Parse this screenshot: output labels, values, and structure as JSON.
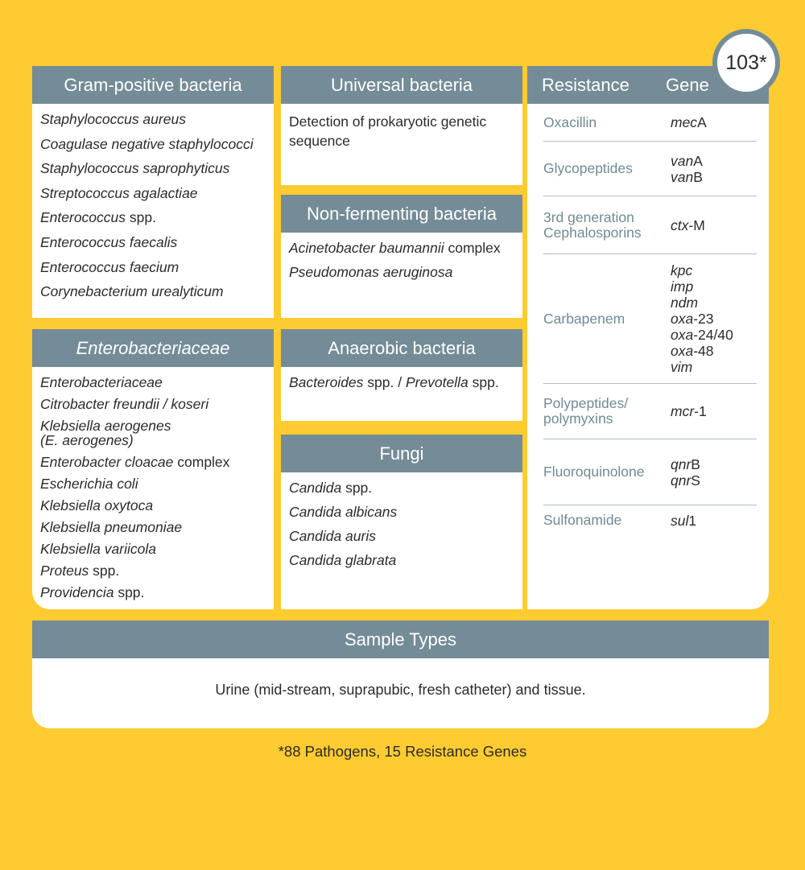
{
  "colors": {
    "background": "#FECB30",
    "header": "#748C97",
    "resistance_text": "#6F8A96"
  },
  "gram_positive": {
    "title": "Gram-positive bacteria",
    "items": [
      [
        {
          "t": "Staphylococcus aureus",
          "i": true
        }
      ],
      [
        {
          "t": "Coagulase negative staphylococci",
          "i": true
        }
      ],
      [
        {
          "t": "Staphylococcus saprophyticus",
          "i": true
        }
      ],
      [
        {
          "t": "Streptococcus agalactiae",
          "i": true
        }
      ],
      [
        {
          "t": "Enterococcus",
          "i": true
        },
        {
          "t": " spp.",
          "i": false
        }
      ],
      [
        {
          "t": "Enterococcus faecalis",
          "i": true
        }
      ],
      [
        {
          "t": "Enterococcus faecium",
          "i": true
        }
      ],
      [
        {
          "t": "Corynebacterium urealyticum",
          "i": true
        }
      ]
    ]
  },
  "enterobacteriaceae": {
    "title": "Enterobacteriaceae",
    "items": [
      [
        {
          "t": "Enterobacteriaceae",
          "i": true
        }
      ],
      [
        {
          "t": "Citrobacter freundii / koseri",
          "i": true
        }
      ],
      [
        {
          "t": "Klebsiella aerogenes",
          "i": true
        },
        {
          "t": "\n(E. aerogenes)",
          "i": true
        }
      ],
      [
        {
          "t": "Enterobacter cloacae",
          "i": true
        },
        {
          "t": " complex",
          "i": false
        }
      ],
      [
        {
          "t": "Escherichia coli",
          "i": true
        }
      ],
      [
        {
          "t": "Klebsiella oxytoca",
          "i": true
        }
      ],
      [
        {
          "t": "Klebsiella pneumoniae",
          "i": true
        }
      ],
      [
        {
          "t": "Klebsiella variicola",
          "i": true
        }
      ],
      [
        {
          "t": "Proteus",
          "i": true
        },
        {
          "t": " spp.",
          "i": false
        }
      ],
      [
        {
          "t": "Providencia",
          "i": true
        },
        {
          "t": " spp.",
          "i": false
        }
      ]
    ]
  },
  "universal": {
    "title": "Universal bacteria",
    "items": [
      [
        {
          "t": "Detection of prokaryotic genetic sequence",
          "i": false
        }
      ]
    ]
  },
  "non_fermenting": {
    "title": "Non-fermenting bacteria",
    "items": [
      [
        {
          "t": "Acinetobacter baumannii",
          "i": true
        },
        {
          "t": " complex",
          "i": false
        }
      ],
      [
        {
          "t": "Pseudomonas aeruginosa",
          "i": true
        }
      ]
    ]
  },
  "anaerobic": {
    "title": "Anaerobic bacteria",
    "items": [
      [
        {
          "t": "Bacteroides",
          "i": true
        },
        {
          "t": " spp. / ",
          "i": false
        },
        {
          "t": "Prevotella",
          "i": true
        },
        {
          "t": " spp.",
          "i": false
        }
      ]
    ]
  },
  "fungi": {
    "title": "Fungi",
    "items": [
      [
        {
          "t": "Candida",
          "i": true
        },
        {
          "t": " spp.",
          "i": false
        }
      ],
      [
        {
          "t": "Candida albicans",
          "i": true
        }
      ],
      [
        {
          "t": "Candida auris",
          "i": true
        }
      ],
      [
        {
          "t": "Candida glabrata",
          "i": true
        }
      ]
    ]
  },
  "resistance": {
    "col1": "Resistance",
    "col2": "Gene",
    "badge": "103*",
    "rows": [
      {
        "cls": "Oxacillin",
        "genes": [
          [
            {
              "t": "mec",
              "i": true
            },
            {
              "t": "A",
              "i": false
            }
          ]
        ]
      },
      {
        "cls": "Glycopeptides",
        "genes": [
          [
            {
              "t": "van",
              "i": true
            },
            {
              "t": "A",
              "i": false
            }
          ],
          [
            {
              "t": "van",
              "i": true
            },
            {
              "t": "B",
              "i": false
            }
          ]
        ]
      },
      {
        "cls": "3rd generation Cephalosporins",
        "genes": [
          [
            {
              "t": "ctx",
              "i": true
            },
            {
              "t": "-M",
              "i": false
            }
          ]
        ]
      },
      {
        "cls": "Carbapenem",
        "genes": [
          [
            {
              "t": "kpc",
              "i": true
            }
          ],
          [
            {
              "t": "imp",
              "i": true
            }
          ],
          [
            {
              "t": "ndm",
              "i": true
            }
          ],
          [
            {
              "t": "oxa",
              "i": true
            },
            {
              "t": "-23",
              "i": false
            }
          ],
          [
            {
              "t": "oxa",
              "i": true
            },
            {
              "t": "-24/40",
              "i": false
            }
          ],
          [
            {
              "t": "oxa",
              "i": true
            },
            {
              "t": "-48",
              "i": false
            }
          ],
          [
            {
              "t": "vim",
              "i": true
            }
          ]
        ]
      },
      {
        "cls": "Polypeptides/ polymyxins",
        "genes": [
          [
            {
              "t": "mcr",
              "i": true
            },
            {
              "t": "-1",
              "i": false
            }
          ]
        ]
      },
      {
        "cls": "Fluoroquinolone",
        "genes": [
          [
            {
              "t": "qnr",
              "i": true
            },
            {
              "t": "B",
              "i": false
            }
          ],
          [
            {
              "t": "qnr",
              "i": true
            },
            {
              "t": "S",
              "i": false
            }
          ]
        ]
      },
      {
        "cls": "Sulfonamide",
        "genes": [
          [
            {
              "t": "sul",
              "i": true
            },
            {
              "t": "1",
              "i": false
            }
          ]
        ]
      }
    ]
  },
  "sample_types": {
    "title": "Sample Types",
    "text": "Urine (mid-stream, suprapubic, fresh catheter) and tissue."
  },
  "footnote": "*88 Pathogens, 15 Resistance Genes"
}
